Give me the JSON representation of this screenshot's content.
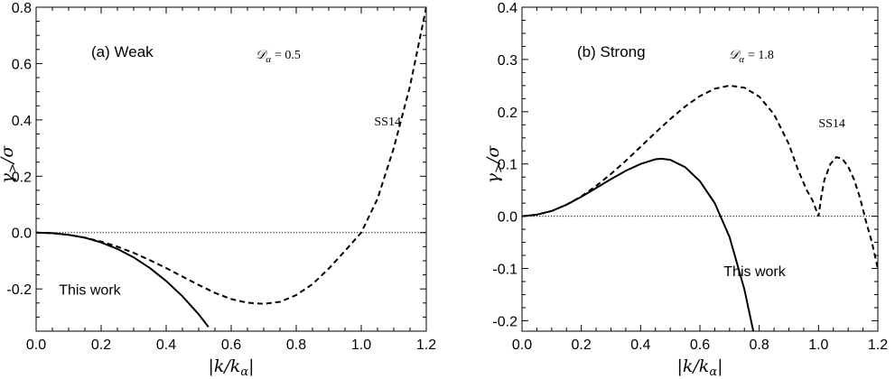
{
  "chart_data": [
    {
      "type": "line",
      "panel_label": "(a) Weak",
      "parameter_label": "𝒟",
      "parameter_sub": "α",
      "parameter_value": "= 0.5",
      "xlabel": "|k/k",
      "xlabel_sub": "α",
      "xlabel_tail": "|",
      "ylabel": "γ",
      "ylabel_sub": ">",
      "ylabel_tail": "/σ",
      "xlim": [
        0,
        1.2
      ],
      "ylim": [
        -0.35,
        0.8
      ],
      "x_ticks": [
        "0.0",
        "0.2",
        "0.4",
        "0.6",
        "0.8",
        "1.0",
        "1.2"
      ],
      "y_ticks": [
        "-0.2",
        "0.0",
        "0.2",
        "0.4",
        "0.6",
        "0.8"
      ],
      "annotations": [
        {
          "text": "This work",
          "x": 0.07,
          "y": -0.22
        },
        {
          "text": "SS14",
          "x": 1.04,
          "y": 0.38
        }
      ],
      "series": [
        {
          "style": "solid",
          "x": [
            0.0,
            0.05,
            0.1,
            0.15,
            0.2,
            0.25,
            0.3,
            0.35,
            0.4,
            0.45,
            0.5,
            0.53
          ],
          "y": [
            0.0,
            -0.002,
            -0.008,
            -0.018,
            -0.035,
            -0.058,
            -0.088,
            -0.126,
            -0.172,
            -0.226,
            -0.29,
            -0.335
          ]
        },
        {
          "style": "dashed",
          "x": [
            0.0,
            0.05,
            0.1,
            0.15,
            0.2,
            0.25,
            0.3,
            0.35,
            0.4,
            0.45,
            0.5,
            0.55,
            0.6,
            0.65,
            0.7,
            0.75,
            0.8,
            0.85,
            0.9,
            0.95,
            1.0,
            1.05,
            1.1,
            1.15,
            1.2
          ],
          "y": [
            0.0,
            -0.002,
            -0.008,
            -0.018,
            -0.032,
            -0.05,
            -0.072,
            -0.098,
            -0.126,
            -0.156,
            -0.186,
            -0.214,
            -0.236,
            -0.249,
            -0.253,
            -0.246,
            -0.222,
            -0.183,
            -0.128,
            -0.065,
            0.0,
            0.12,
            0.3,
            0.52,
            0.8
          ]
        },
        {
          "style": "dotted",
          "x": [
            0.0,
            1.2
          ],
          "y": [
            0.0,
            0.0
          ]
        }
      ]
    },
    {
      "type": "line",
      "panel_label": "(b) Strong",
      "parameter_label": "𝒟",
      "parameter_sub": "α",
      "parameter_value": "= 1.8",
      "xlabel": "|k/k",
      "xlabel_sub": "α",
      "xlabel_tail": "|",
      "ylabel": "γ",
      "ylabel_sub": ">",
      "ylabel_tail": "/σ",
      "xlim": [
        0,
        1.2
      ],
      "ylim": [
        -0.22,
        0.4
      ],
      "x_ticks": [
        "0.0",
        "0.2",
        "0.4",
        "0.6",
        "0.8",
        "1.0",
        "1.2"
      ],
      "y_ticks": [
        "-0.2",
        "-0.1",
        "0.0",
        "0.1",
        "0.2",
        "0.3",
        "0.4"
      ],
      "annotations": [
        {
          "text": "This work",
          "x": 0.68,
          "y": -0.115
        },
        {
          "text": "SS14",
          "x": 1.0,
          "y": 0.17
        }
      ],
      "series": [
        {
          "style": "solid",
          "x": [
            0.0,
            0.05,
            0.1,
            0.15,
            0.2,
            0.25,
            0.3,
            0.35,
            0.4,
            0.45,
            0.47,
            0.5,
            0.55,
            0.6,
            0.65,
            0.7,
            0.75,
            0.78
          ],
          "y": [
            0.0,
            0.003,
            0.01,
            0.022,
            0.037,
            0.054,
            0.071,
            0.087,
            0.1,
            0.109,
            0.11,
            0.108,
            0.094,
            0.067,
            0.025,
            -0.04,
            -0.14,
            -0.22
          ]
        },
        {
          "style": "dashed",
          "x": [
            0.0,
            0.05,
            0.1,
            0.15,
            0.2,
            0.25,
            0.3,
            0.35,
            0.4,
            0.45,
            0.5,
            0.55,
            0.6,
            0.65,
            0.7,
            0.75,
            0.8,
            0.85,
            0.9,
            0.93,
            0.96,
            0.98,
            0.99,
            1.0,
            1.01,
            1.02,
            1.04,
            1.06,
            1.08,
            1.1,
            1.12,
            1.14,
            1.16,
            1.18,
            1.2
          ],
          "y": [
            0.0,
            0.003,
            0.01,
            0.022,
            0.038,
            0.058,
            0.081,
            0.106,
            0.133,
            0.16,
            0.186,
            0.21,
            0.23,
            0.244,
            0.25,
            0.246,
            0.229,
            0.195,
            0.138,
            0.09,
            0.05,
            0.03,
            0.015,
            0.0,
            0.04,
            0.07,
            0.1,
            0.113,
            0.11,
            0.095,
            0.07,
            0.035,
            -0.01,
            -0.05,
            -0.1
          ]
        },
        {
          "style": "dotted",
          "x": [
            0.0,
            1.2
          ],
          "y": [
            0.0,
            0.0
          ]
        }
      ]
    }
  ]
}
